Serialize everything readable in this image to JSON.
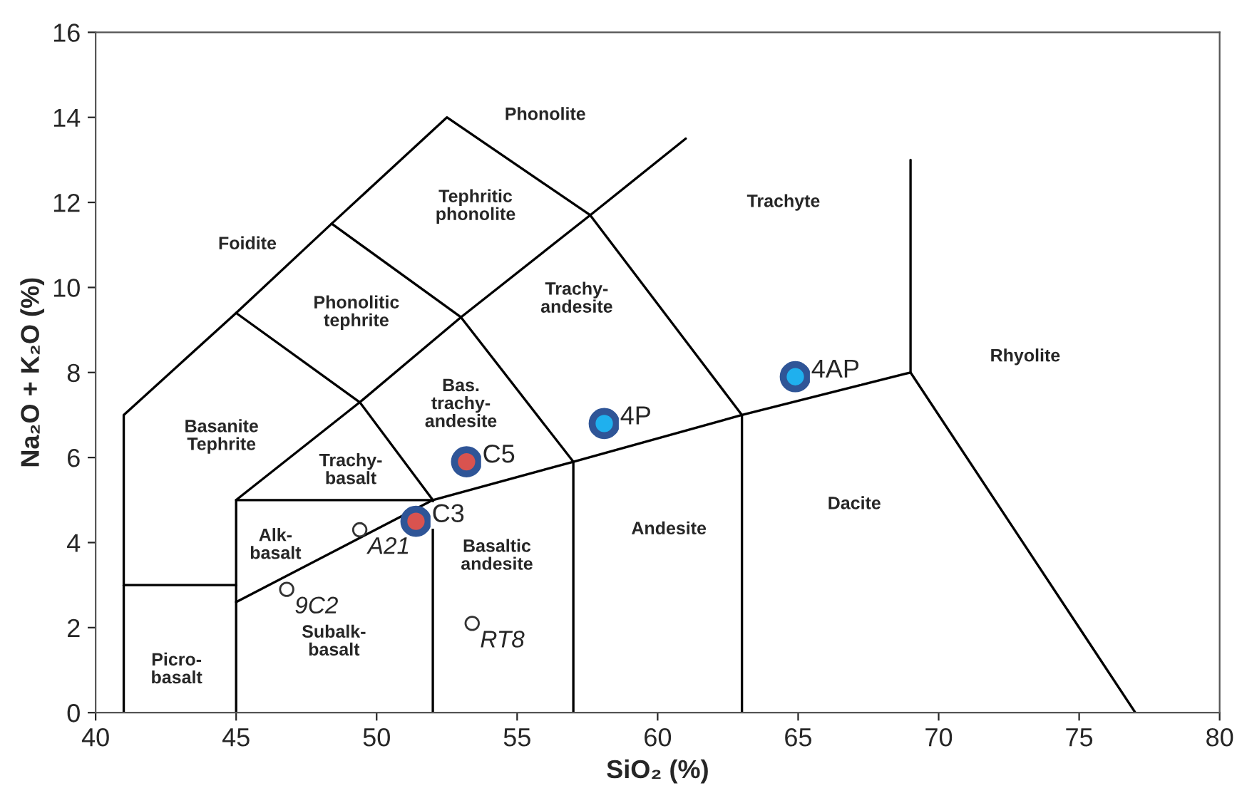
{
  "chart_data": {
    "type": "scatter",
    "xlabel": "SiO₂ (%)",
    "ylabel": "Na₂O + K₂O (%)",
    "xlim": [
      40,
      80
    ],
    "xticks": [
      40,
      45,
      50,
      55,
      60,
      65,
      70,
      75,
      80
    ],
    "ylim": [
      0,
      16
    ],
    "yticks": [
      0,
      2,
      4,
      6,
      8,
      10,
      12,
      14,
      16
    ],
    "grid": false,
    "legend": false,
    "marker": "circle",
    "series": [
      {
        "type": "line",
        "color": "#000000",
        "x": [
          41,
          41,
          45,
          48.4,
          52.5,
          57.6,
          63
        ],
        "values": [
          0,
          7,
          9.4,
          11.5,
          14,
          11.7,
          7
        ],
        "marker": "none"
      },
      {
        "type": "line",
        "color": "#000000",
        "x": [
          41,
          45
        ],
        "values": [
          3,
          3
        ],
        "marker": "none"
      },
      {
        "type": "line",
        "color": "#000000",
        "x": [
          45,
          45,
          52,
          52
        ],
        "values": [
          0,
          5,
          5,
          0
        ],
        "marker": "none"
      },
      {
        "type": "line",
        "color": "#000000",
        "x": [
          45,
          49.4,
          53,
          57.6,
          61
        ],
        "values": [
          5,
          7.3,
          9.3,
          11.7,
          13.5
        ],
        "marker": "none"
      },
      {
        "type": "line",
        "color": "#000000",
        "x": [
          45,
          49.4,
          52
        ],
        "values": [
          9.4,
          7.3,
          5
        ],
        "marker": "none"
      },
      {
        "type": "line",
        "color": "#000000",
        "x": [
          48.4,
          53,
          57,
          57
        ],
        "values": [
          11.5,
          9.3,
          5.9,
          0
        ],
        "marker": "none"
      },
      {
        "type": "line",
        "color": "#000000",
        "x": [
          45,
          52,
          57,
          63,
          69,
          77
        ],
        "values": [
          2.6,
          5,
          5.9,
          7,
          8,
          0
        ],
        "marker": "none"
      },
      {
        "type": "line",
        "color": "#000000",
        "x": [
          63,
          63
        ],
        "values": [
          0,
          7
        ],
        "marker": "none"
      },
      {
        "type": "line",
        "color": "#000000",
        "x": [
          69,
          69
        ],
        "values": [
          8,
          13
        ],
        "marker": "none"
      },
      {
        "color": "#d9534f",
        "x": [
          51.4,
          53.2
        ],
        "values": [
          4.5,
          5.9
        ]
      },
      {
        "color": "#1fb0ee",
        "x": [
          58.1,
          64.9
        ],
        "values": [
          6.8,
          7.9
        ]
      },
      {
        "color": "#ffffff",
        "x": [
          49.4,
          46.8,
          53.4
        ],
        "values": [
          4.3,
          2.9,
          2.1
        ]
      }
    ],
    "annotations": [
      {
        "text": "C3",
        "x": 51.4,
        "y": 4.5
      },
      {
        "text": "C5",
        "x": 53.2,
        "y": 5.9
      },
      {
        "text": "4P",
        "x": 58.1,
        "y": 6.8
      },
      {
        "text": "4AP",
        "x": 64.9,
        "y": 7.9
      },
      {
        "text": "A21",
        "x": 49.4,
        "y": 4.3
      },
      {
        "text": "9C2",
        "x": 46.8,
        "y": 2.9
      },
      {
        "text": "RT8",
        "x": 53.4,
        "y": 2.1
      },
      "Phonolite",
      "Tephritic\nphonolite",
      "Foidite",
      "Trachyte",
      "Phonolitic\ntephrite",
      "Trachy-\nandesite",
      "Rhyolite",
      "Basanite\nTephrite",
      "Bas.\ntrachy-\nandesite",
      "Trachy-\nbasalt",
      "Alk-\nbasalt",
      "Basaltic\nandesite",
      "Andesite",
      "Dacite",
      "Picro-\nbasalt",
      "Subalk-\nbasalt"
    ]
  }
}
